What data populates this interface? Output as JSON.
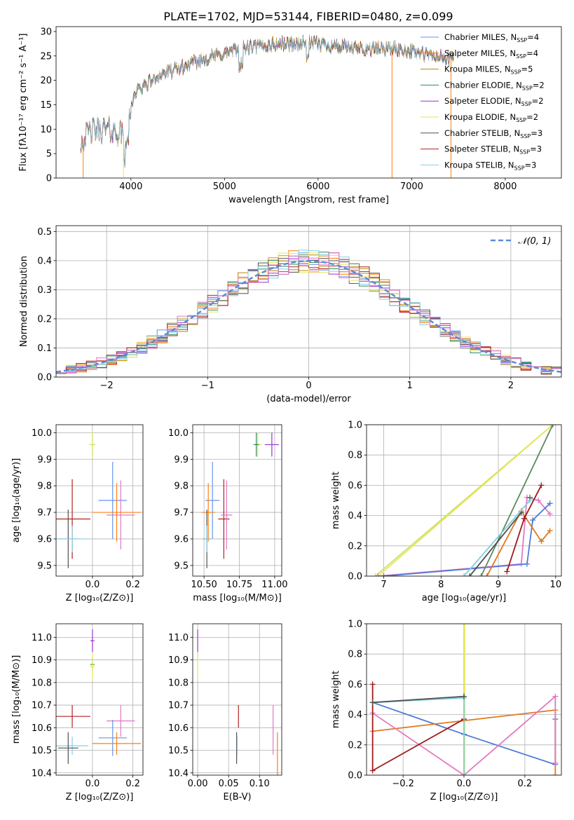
{
  "colors": {
    "chabrier_miles": "#6495ed",
    "salpeter_miles": "#ff7f0e",
    "kroupa_miles": "#b8860b",
    "chabrier_elodie": "#2e8b57",
    "salpeter_elodie": "#9932cc",
    "kroupa_elodie": "#e6e65a",
    "chabrier_stelib": "#505050",
    "salpeter_stelib": "#b22222",
    "kroupa_stelib": "#87ceeb",
    "pink": "#e377c2",
    "chabrier_line": "#4f7bd8",
    "salpeter_line": "#e07820",
    "elodie_line": "#5c8a5c",
    "kroupa_elodie_line": "#cde06a",
    "salpeter_stelib_line": "#a01818",
    "kroupa_stelib_line": "#7fd0dc",
    "gaussian": "#5b8bd6",
    "grid": "#b0b0b0"
  },
  "chart_data": [
    {
      "id": "spectrum",
      "type": "line",
      "title": "PLATE=1702, MJD=53144, FIBERID=0480, z=0.099",
      "xlabel": "wavelength [Angstrom, rest frame]",
      "ylabel": "Flux [fλ10⁻¹⁷ erg cm⁻² s⁻¹ A⁻¹]",
      "xlim": [
        3200,
        8600
      ],
      "ylim": [
        0,
        31
      ],
      "xticks": [
        4000,
        5000,
        6000,
        7000,
        8000
      ],
      "yticks": [
        0,
        5,
        10,
        15,
        20,
        25,
        30
      ],
      "grid": false,
      "legend_position": "top-right",
      "legend": [
        {
          "label": "Chabrier MILES, N",
          "sub": "SSP",
          "value": "=4",
          "color": "#6495ed"
        },
        {
          "label": "Salpeter MILES, N",
          "sub": "SSP",
          "value": "=4",
          "color": "#ff7f0e"
        },
        {
          "label": "Kroupa MILES, N",
          "sub": "SSP",
          "value": "=5",
          "color": "#b8860b"
        },
        {
          "label": "Chabrier ELODIE, N",
          "sub": "SSP",
          "value": "=2",
          "color": "#2e8b57"
        },
        {
          "label": "Salpeter ELODIE, N",
          "sub": "SSP",
          "value": "=2",
          "color": "#9932cc"
        },
        {
          "label": "Kroupa ELODIE, N",
          "sub": "SSP",
          "value": "=2",
          "color": "#e6e65a"
        },
        {
          "label": "Chabrier STELIB, N",
          "sub": "SSP",
          "value": "=3",
          "color": "#505050"
        },
        {
          "label": "Salpeter STELIB, N",
          "sub": "SSP",
          "value": "=3",
          "color": "#b22222"
        },
        {
          "label": "Kroupa STELIB, N",
          "sub": "SSP",
          "value": "=3",
          "color": "#87ceeb"
        }
      ],
      "continuum": {
        "x": [
          3460,
          3550,
          3700,
          3850,
          3950,
          4000,
          4050,
          4150,
          4300,
          4450,
          4600,
          4800,
          5000,
          5200,
          5400,
          5600,
          5800,
          6000,
          6200,
          6400,
          6600,
          6800,
          7000,
          7200,
          7400,
          7450
        ],
        "y": [
          7.5,
          9.5,
          10,
          9.5,
          8.5,
          15,
          17.5,
          19,
          21,
          22,
          23,
          24.5,
          25.5,
          26.5,
          27,
          27.5,
          27.5,
          27.5,
          27,
          26.5,
          26.5,
          26.5,
          26,
          25,
          24.5,
          24.5
        ]
      },
      "dropouts": [
        {
          "x": 3490,
          "y0": 0,
          "color": "#ff7f0e"
        },
        {
          "x": 3920,
          "y0": 0,
          "color": "#e6e65a"
        },
        {
          "x": 6790,
          "y0": 0,
          "color": "#ff7f0e"
        },
        {
          "x": 7420,
          "y0": 0,
          "color": "#ff7f0e"
        }
      ]
    },
    {
      "id": "residuals",
      "type": "bar",
      "xlabel": "(data-model)/error",
      "ylabel": "Normed distribution",
      "xlim": [
        -2.5,
        2.5
      ],
      "ylim": [
        0,
        0.52
      ],
      "xticks": [
        -2,
        -1,
        0,
        1,
        2
      ],
      "yticks": [
        0.0,
        0.1,
        0.2,
        0.3,
        0.4,
        0.5
      ],
      "grid": true,
      "legend_position": "top-right",
      "legend": [
        {
          "label": "𝒩(0, 1)",
          "color": "#5b8bd6",
          "style": "dashed"
        }
      ],
      "bin_width": 0.1
    },
    {
      "id": "age_vs_z",
      "type": "scatter",
      "xlabel": "Z [log₁₀(Z/Z⊙)]",
      "ylabel": "age  [log₁₀(age/yr)]",
      "xlim": [
        -0.18,
        0.25
      ],
      "ylim": [
        9.46,
        10.03
      ],
      "xticks": [
        0.0,
        0.2
      ],
      "yticks": [
        9.5,
        9.6,
        9.7,
        9.8,
        9.9,
        10.0
      ],
      "grid": true,
      "points": [
        {
          "x": 0.0,
          "y": 9.955,
          "xerr": 0.015,
          "yerr": 0.05,
          "color": "#e6e65a"
        },
        {
          "x": 0.0,
          "y": 9.955,
          "xerr": 0.012,
          "yerr": 0.045,
          "color": "#cde06a"
        },
        {
          "x": 0.1,
          "y": 9.745,
          "xerr": 0.07,
          "yerr": 0.145,
          "color": "#6495ed"
        },
        {
          "x": 0.14,
          "y": 9.69,
          "xerr": 0.07,
          "yerr": 0.13,
          "color": "#e377c2"
        },
        {
          "x": 0.12,
          "y": 9.7,
          "xerr": 0.12,
          "yerr": 0.11,
          "color": "#ff7f0e"
        },
        {
          "x": -0.1,
          "y": 9.675,
          "xerr": 0.09,
          "yerr": 0.15,
          "color": "#b22222"
        },
        {
          "x": -0.12,
          "y": 9.6,
          "xerr": 0.05,
          "yerr": 0.11,
          "color": "#505050"
        },
        {
          "x": -0.1,
          "y": 9.6,
          "xerr": 0.08,
          "yerr": 0.05,
          "color": "#87ceeb"
        }
      ]
    },
    {
      "id": "age_vs_mass",
      "type": "scatter",
      "xlabel": "mass [log₁₀(M/M⊙)]",
      "ylabel": "",
      "xlim": [
        10.42,
        11.05
      ],
      "ylim": [
        9.46,
        10.03
      ],
      "xticks": [
        10.5,
        10.75,
        11.0
      ],
      "yticks": [
        9.5,
        9.6,
        9.7,
        9.8,
        9.9,
        10.0
      ],
      "grid": true,
      "points": [
        {
          "x": 10.88,
          "y": 9.955,
          "xerr": 0.03,
          "yerr": 0.045,
          "color": "#e6e65a"
        },
        {
          "x": 10.87,
          "y": 9.955,
          "xerr": 0.02,
          "yerr": 0.045,
          "color": "#2e8b57"
        },
        {
          "x": 10.98,
          "y": 9.955,
          "xerr": 0.05,
          "yerr": 0.045,
          "color": "#9932cc"
        },
        {
          "x": 10.56,
          "y": 9.745,
          "xerr": 0.05,
          "yerr": 0.145,
          "color": "#6495ed"
        },
        {
          "x": 10.53,
          "y": 9.7,
          "xerr": 0.05,
          "yerr": 0.11,
          "color": "#ff7f0e"
        },
        {
          "x": 10.64,
          "y": 9.675,
          "xerr": 0.04,
          "yerr": 0.15,
          "color": "#b22222"
        },
        {
          "x": 10.66,
          "y": 9.69,
          "xerr": 0.04,
          "yerr": 0.13,
          "color": "#e377c2"
        },
        {
          "x": 10.52,
          "y": 9.6,
          "xerr": 0.03,
          "yerr": 0.11,
          "color": "#505050"
        },
        {
          "x": 10.52,
          "y": 9.6,
          "xerr": 0.03,
          "yerr": 0.05,
          "color": "#87ceeb"
        }
      ]
    },
    {
      "id": "weight_vs_age",
      "type": "line",
      "xlabel": "age  [log₁₀(age/yr)]",
      "ylabel": "mass weight",
      "xlim": [
        6.7,
        10.1
      ],
      "ylim": [
        0,
        1.0
      ],
      "xticks": [
        7,
        8,
        9,
        10
      ],
      "yticks": [
        0.0,
        0.2,
        0.4,
        0.6,
        0.8,
        1.0
      ],
      "grid": true,
      "series": [
        {
          "color": "#cde06a",
          "x": [
            6.85,
            9.95
          ],
          "y": [
            0.0,
            1.0
          ]
        },
        {
          "color": "#e6e65a",
          "x": [
            6.9,
            9.95
          ],
          "y": [
            0.0,
            1.0
          ]
        },
        {
          "color": "#5c8a5c",
          "x": [
            8.7,
            9.95
          ],
          "y": [
            0.0,
            1.0
          ]
        },
        {
          "color": "#e377c2",
          "x": [
            6.9,
            9.4,
            9.5,
            9.7,
            9.9
          ],
          "y": [
            0.0,
            0.08,
            0.52,
            0.5,
            0.41
          ]
        },
        {
          "color": "#4f7bd8",
          "x": [
            7.0,
            9.5,
            9.6,
            9.9
          ],
          "y": [
            0.0,
            0.08,
            0.37,
            0.48
          ]
        },
        {
          "color": "#e07820",
          "x": [
            8.8,
            9.4,
            9.75,
            9.9
          ],
          "y": [
            0.0,
            0.43,
            0.23,
            0.3
          ]
        },
        {
          "color": "#a01818",
          "x": [
            9.15,
            9.45,
            9.75
          ],
          "y": [
            0.03,
            0.38,
            0.6
          ]
        },
        {
          "color": "#505050",
          "x": [
            8.5,
            9.4
          ],
          "y": [
            0.0,
            0.42
          ]
        },
        {
          "color": "#7fd0dc",
          "x": [
            8.4,
            9.55
          ],
          "y": [
            0.0,
            0.5
          ]
        },
        {
          "color": "#2e8b57",
          "x": [
            9.55
          ],
          "y": [
            0.52
          ]
        }
      ]
    },
    {
      "id": "mass_vs_z",
      "type": "scatter",
      "xlabel": "Z [log₁₀(Z/Z⊙)]",
      "ylabel": "mass [log₁₀(M/M⊙)]",
      "xlim": [
        -0.18,
        0.25
      ],
      "ylim": [
        10.39,
        11.06
      ],
      "xticks": [
        0.0,
        0.2
      ],
      "yticks": [
        10.4,
        10.5,
        10.6,
        10.7,
        10.8,
        10.9,
        11.0
      ],
      "grid": true,
      "points": [
        {
          "x": 0.0,
          "y": 10.985,
          "xerr": 0.01,
          "yerr": 0.05,
          "color": "#9932cc"
        },
        {
          "x": 0.0,
          "y": 10.88,
          "xerr": 0.01,
          "yerr": 0.03,
          "color": "#2e8b57"
        },
        {
          "x": 0.0,
          "y": 10.87,
          "xerr": 0.012,
          "yerr": 0.06,
          "color": "#e6e65a"
        },
        {
          "x": -0.1,
          "y": 10.65,
          "xerr": 0.09,
          "yerr": 0.05,
          "color": "#b22222"
        },
        {
          "x": 0.14,
          "y": 10.63,
          "xerr": 0.07,
          "yerr": 0.07,
          "color": "#e377c2"
        },
        {
          "x": 0.1,
          "y": 10.555,
          "xerr": 0.07,
          "yerr": 0.08,
          "color": "#6495ed"
        },
        {
          "x": 0.12,
          "y": 10.53,
          "xerr": 0.12,
          "yerr": 0.05,
          "color": "#ff7f0e"
        },
        {
          "x": -0.1,
          "y": 10.52,
          "xerr": 0.08,
          "yerr": 0.04,
          "color": "#87ceeb"
        },
        {
          "x": -0.12,
          "y": 10.51,
          "xerr": 0.05,
          "yerr": 0.07,
          "color": "#505050"
        }
      ]
    },
    {
      "id": "mass_vs_ebv",
      "type": "scatter",
      "xlabel": "E(B-V)",
      "ylabel": "",
      "xlim": [
        -0.008,
        0.136
      ],
      "ylim": [
        10.39,
        11.06
      ],
      "xticks": [
        0.0,
        0.05,
        0.1
      ],
      "yticks": [
        10.4,
        10.5,
        10.6,
        10.7,
        10.8,
        10.9,
        11.0
      ],
      "grid": true,
      "points": [
        {
          "x": 0.0,
          "y": 10.985,
          "xerr": 0,
          "yerr": 0.05,
          "color": "#9932cc"
        },
        {
          "x": 0.0,
          "y": 10.87,
          "xerr": 0,
          "yerr": 0.06,
          "color": "#e6e65a"
        },
        {
          "x": 0.066,
          "y": 10.65,
          "xerr": 0,
          "yerr": 0.05,
          "color": "#b22222"
        },
        {
          "x": 0.063,
          "y": 10.51,
          "xerr": 0,
          "yerr": 0.07,
          "color": "#505050"
        },
        {
          "x": 0.064,
          "y": 10.52,
          "xerr": 0,
          "yerr": 0.04,
          "color": "#87ceeb"
        },
        {
          "x": 0.122,
          "y": 10.59,
          "xerr": 0,
          "yerr": 0.11,
          "color": "#e377c2"
        },
        {
          "x": 0.129,
          "y": 10.48,
          "xerr": 0,
          "yerr": 0.1,
          "color": "#ff7f0e"
        }
      ]
    },
    {
      "id": "weight_vs_z",
      "type": "line",
      "xlabel": "Z [log₁₀(Z/Z⊙)]",
      "ylabel": "mass weight",
      "xlim": [
        -0.32,
        0.32
      ],
      "ylim": [
        0,
        1.0
      ],
      "xticks": [
        -0.2,
        0.0,
        0.2
      ],
      "yticks": [
        0.0,
        0.2,
        0.4,
        0.6,
        0.8,
        1.0
      ],
      "grid": true,
      "series": [
        {
          "color": "#cde06a",
          "x": [
            0.0,
            0.0
          ],
          "y": [
            0.0,
            1.0
          ]
        },
        {
          "color": "#e6e65a",
          "x": [
            0.002,
            0.002
          ],
          "y": [
            0.0,
            1.0
          ]
        },
        {
          "color": "#4f7bd8",
          "x": [
            -0.3,
            0.0,
            0.3,
            0.3
          ],
          "y": [
            0.48,
            0.27,
            0.07,
            0.37
          ]
        },
        {
          "color": "#e07820",
          "x": [
            -0.3,
            0.3,
            0.3
          ],
          "y": [
            0.29,
            0.43,
            0.0
          ]
        },
        {
          "color": "#e377c2",
          "x": [
            -0.3,
            0.0,
            0.3,
            0.3
          ],
          "y": [
            0.41,
            0.0,
            0.52,
            0.08
          ]
        },
        {
          "color": "#a01818",
          "x": [
            -0.3,
            -0.3,
            0.0
          ],
          "y": [
            0.6,
            0.03,
            0.37
          ]
        },
        {
          "color": "#7fd0dc",
          "x": [
            -0.3,
            0.0,
            0.0
          ],
          "y": [
            0.48,
            0.51,
            0.0
          ]
        },
        {
          "color": "#505050",
          "x": [
            -0.3,
            0.0
          ],
          "y": [
            0.48,
            0.52
          ]
        }
      ]
    }
  ]
}
